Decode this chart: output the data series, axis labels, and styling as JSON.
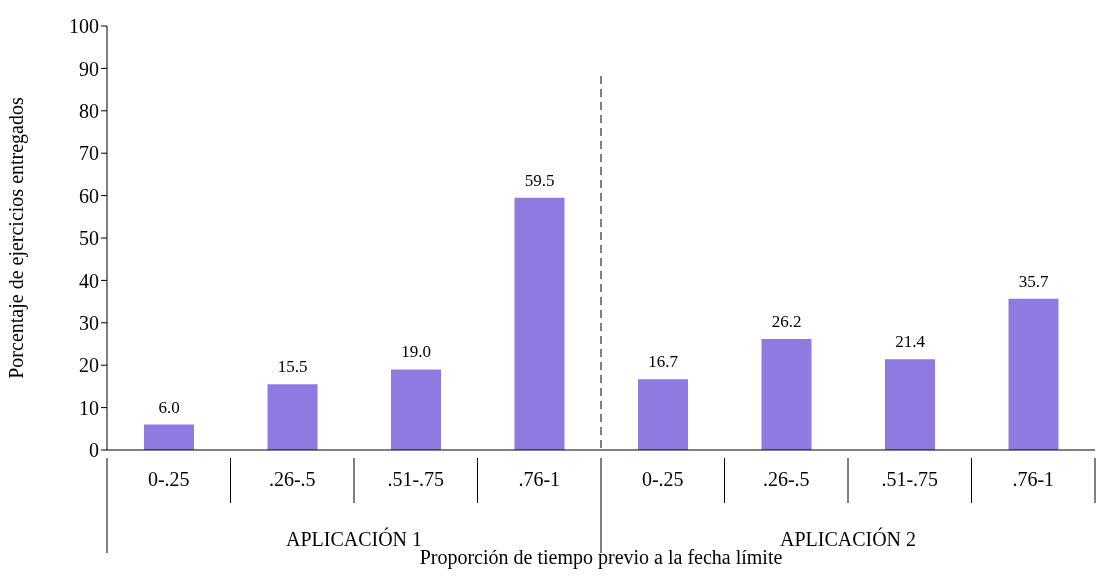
{
  "chart_data": {
    "type": "bar",
    "xlabel": "Proporción de tiempo previo a la fecha límite",
    "ylabel": "Porcentaje  de ejercicios entregados",
    "categories": [
      "0-.25",
      ".26-.5",
      ".51-.75",
      ".76-1",
      "0-.25",
      ".26-.5",
      ".51-.75",
      ".76-1"
    ],
    "values": [
      6.0,
      15.5,
      19.0,
      59.5,
      16.7,
      26.2,
      21.4,
      35.7
    ],
    "color": "#8e7ae0",
    "value_labels": [
      "6.0",
      "15.5",
      "19.0",
      "59.5",
      "16.7",
      "26.2",
      "21.4",
      "35.7"
    ],
    "ylim": [
      0,
      100
    ],
    "yticks": [
      0,
      10,
      20,
      30,
      40,
      50,
      60,
      70,
      80,
      90,
      100
    ],
    "grid": false,
    "legend": false,
    "annotations": [
      "APLICACIÓN 1",
      "APLICACIÓN 2"
    ]
  }
}
